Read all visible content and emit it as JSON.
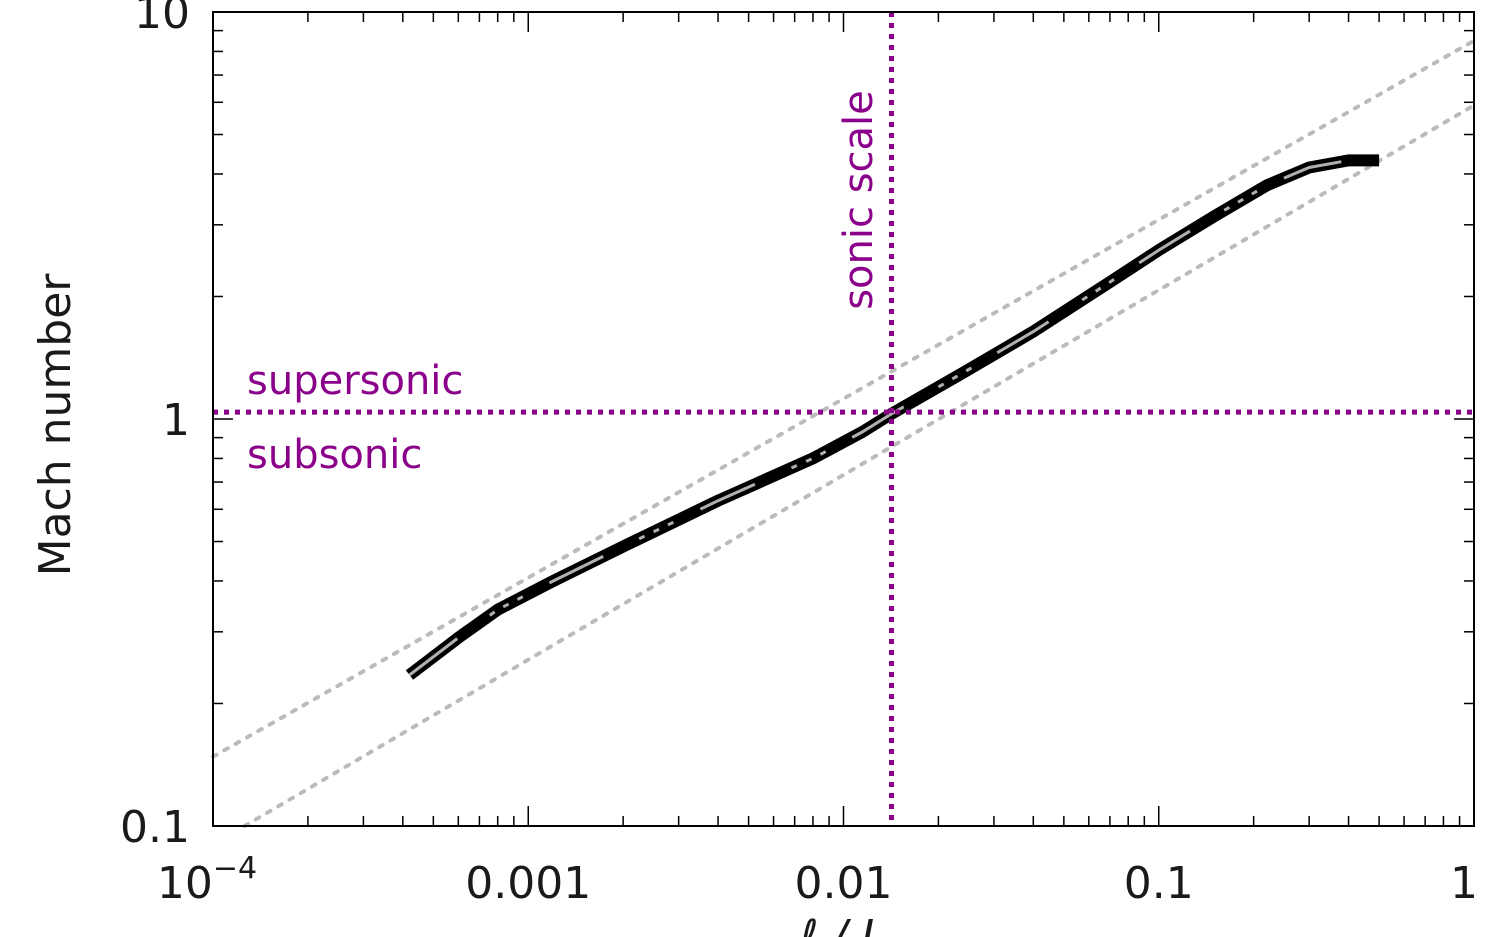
{
  "chart_data": {
    "type": "line",
    "x_scale": "log",
    "y_scale": "log",
    "xlim": [
      0.0001,
      1
    ],
    "ylim": [
      0.1,
      10
    ],
    "xlabel": "ℓ / L",
    "ylabel": "Mach number",
    "x_ticks": [
      {
        "value": 0.0001,
        "base": "10",
        "exp": "−4"
      },
      {
        "value": 0.001,
        "label": "0.001"
      },
      {
        "value": 0.01,
        "label": "0.01"
      },
      {
        "value": 0.1,
        "label": "0.1"
      },
      {
        "value": 1,
        "label": "1"
      }
    ],
    "y_ticks": [
      {
        "value": 0.1,
        "label": "0.1"
      },
      {
        "value": 1,
        "label": "1"
      },
      {
        "value": 10,
        "label": "10"
      }
    ],
    "series": [
      {
        "style": "thick black line with thin grey core",
        "color": "#000000",
        "points": [
          [
            0.00042,
            0.235
          ],
          [
            0.0006,
            0.29
          ],
          [
            0.0008,
            0.34
          ],
          [
            0.0012,
            0.4
          ],
          [
            0.0021,
            0.495
          ],
          [
            0.004,
            0.63
          ],
          [
            0.008,
            0.8
          ],
          [
            0.0115,
            0.93
          ],
          [
            0.0142,
            1.03
          ],
          [
            0.024,
            1.3
          ],
          [
            0.04,
            1.64
          ],
          [
            0.07,
            2.17
          ],
          [
            0.1,
            2.6
          ],
          [
            0.15,
            3.15
          ],
          [
            0.22,
            3.75
          ],
          [
            0.3,
            4.15
          ],
          [
            0.4,
            4.32
          ],
          [
            0.5,
            4.32
          ]
        ]
      },
      {
        "style": "dotted grey reference line",
        "color": "#bbbbbb",
        "points": [
          [
            0.0001,
            0.148
          ],
          [
            1,
            8.5
          ]
        ]
      },
      {
        "style": "dotted grey reference line",
        "color": "#bbbbbb",
        "points": [
          [
            0.000126,
            0.1
          ],
          [
            1,
            5.9
          ]
        ]
      }
    ],
    "reference_lines": [
      {
        "orientation": "horizontal",
        "value": 1.04,
        "color": "#8b008b",
        "style": "dotted"
      },
      {
        "orientation": "vertical",
        "value": 0.0142,
        "color": "#8b008b",
        "style": "dotted"
      }
    ],
    "annotations": [
      {
        "text": "supersonic",
        "color": "#8b008b"
      },
      {
        "text": "subsonic",
        "color": "#8b008b"
      },
      {
        "text": "sonic scale",
        "color": "#8b008b"
      }
    ],
    "grid": false,
    "legend": "none"
  }
}
